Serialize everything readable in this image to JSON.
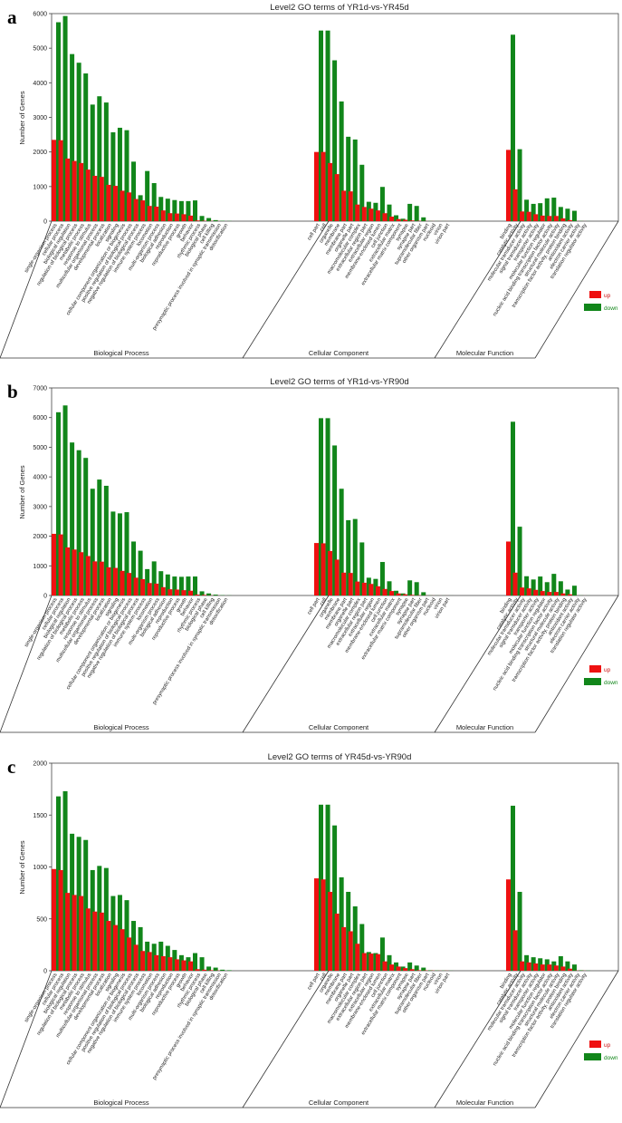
{
  "categories": {
    "bp": [
      "single-organism process",
      "cellular process",
      "biological regulation",
      "regulation of biological process",
      "metabolic process",
      "response to stimulus",
      "multicellular organismal process",
      "developmental process",
      "localization",
      "signaling",
      "cellular component organization or biogenesis",
      "positive regulation of biological process",
      "negative regulation of biological process",
      "immune system process",
      "locomotion",
      "multi-organism process",
      "biological adhesion",
      "reproduction",
      "reproductive process",
      "growth",
      "behavior",
      "rhythmic process",
      "biological phase",
      "cell killing",
      "presynaptic process involved in synaptic transmission",
      "detoxification"
    ],
    "cc": [
      "cell part",
      "cell",
      "organelle",
      "membrane",
      "membrane part",
      "organelle part",
      "macromolecular complex",
      "extracellular region part",
      "extracellular region",
      "membrane-enclosed lumen",
      "cell junction",
      "extracellular matrix",
      "extracellular matrix component",
      "synapse",
      "synapse part",
      "supramolecular fiber",
      "other organism part",
      "nucleoid",
      "virion",
      "virion part"
    ],
    "mf": [
      "binding",
      "catalytic activity",
      "molecular transducer activity",
      "signal transducer activity",
      "transporter activity",
      "molecular function regulator",
      "nucleic acid binding transcription factor activity",
      "structural molecule activity",
      "transcription factor activity, protein binding",
      "antioxidant activity",
      "electron carrier activity",
      "translation regulator activity"
    ]
  },
  "section_labels": {
    "bp": "Biological Process",
    "cc": "Cellular Component",
    "mf": "Molecular Function"
  },
  "panel_letters": [
    "a",
    "b",
    "c"
  ],
  "chart_data": [
    {
      "type": "bar",
      "title": "Level2 GO terms of YR1d-vs-YR45d",
      "ylabel": "Number of Genes",
      "ylim": [
        0,
        6000
      ],
      "yticks": [
        0,
        1000,
        2000,
        3000,
        4000,
        5000,
        6000
      ],
      "legend": {
        "position": "right",
        "entries": [
          "up",
          "down"
        ]
      },
      "series": [
        {
          "name": "up",
          "color": "#ee1111",
          "bp": [
            2350,
            2340,
            1810,
            1740,
            1680,
            1490,
            1310,
            1280,
            1050,
            1020,
            880,
            830,
            640,
            600,
            440,
            420,
            310,
            230,
            220,
            200,
            160,
            20,
            10,
            5,
            2,
            0
          ],
          "cc": [
            2000,
            2000,
            1680,
            1360,
            880,
            860,
            480,
            410,
            360,
            310,
            230,
            130,
            60,
            40,
            20,
            8,
            3,
            2,
            1,
            1
          ],
          "mf": [
            2060,
            920,
            280,
            270,
            200,
            160,
            150,
            150,
            80,
            30,
            2,
            1
          ]
        },
        {
          "name": "down",
          "color": "#11861a",
          "bp": [
            5750,
            5930,
            4830,
            4580,
            4270,
            3370,
            3610,
            3430,
            2570,
            2700,
            2630,
            1720,
            750,
            1450,
            1100,
            700,
            650,
            610,
            580,
            580,
            600,
            150,
            90,
            30,
            10,
            5
          ],
          "cc": [
            5510,
            5510,
            4650,
            3460,
            2440,
            2360,
            1630,
            560,
            530,
            990,
            480,
            170,
            70,
            500,
            440,
            110,
            5,
            3,
            2,
            1
          ],
          "mf": [
            5390,
            2080,
            620,
            500,
            520,
            660,
            680,
            410,
            360,
            300,
            5,
            2
          ]
        }
      ]
    },
    {
      "type": "bar",
      "title": "Level2 GO terms of YR1d-vs-YR90d",
      "ylabel": "Number of Genes",
      "ylim": [
        0,
        7000
      ],
      "yticks": [
        0,
        1000,
        2000,
        3000,
        4000,
        5000,
        6000,
        7000
      ],
      "legend": {
        "position": "right",
        "entries": [
          "up",
          "down"
        ]
      },
      "series": [
        {
          "name": "up",
          "color": "#ee1111",
          "bp": [
            2080,
            2060,
            1620,
            1550,
            1460,
            1330,
            1150,
            1140,
            950,
            930,
            830,
            760,
            600,
            550,
            420,
            400,
            280,
            210,
            200,
            180,
            160,
            30,
            20,
            5,
            2,
            0
          ],
          "cc": [
            1770,
            1760,
            1500,
            1210,
            770,
            760,
            470,
            430,
            390,
            310,
            220,
            150,
            70,
            40,
            20,
            8,
            3,
            2,
            1,
            1
          ],
          "mf": [
            1820,
            770,
            270,
            240,
            190,
            150,
            120,
            120,
            70,
            40,
            2,
            1
          ]
        },
        {
          "name": "down",
          "color": "#11861a",
          "bp": [
            6180,
            6410,
            5160,
            4900,
            4640,
            3600,
            3910,
            3700,
            2830,
            2770,
            2810,
            1820,
            1510,
            890,
            1150,
            820,
            710,
            640,
            630,
            640,
            640,
            140,
            70,
            30,
            10,
            5
          ],
          "cc": [
            5980,
            5980,
            5060,
            3600,
            2540,
            2580,
            1790,
            600,
            560,
            1130,
            480,
            160,
            70,
            510,
            450,
            110,
            5,
            3,
            2,
            1
          ],
          "mf": [
            5860,
            2320,
            650,
            540,
            640,
            450,
            730,
            480,
            200,
            330,
            5,
            2
          ]
        }
      ]
    },
    {
      "type": "bar",
      "title": "Level2 GO terms of YR45d-vs-YR90d",
      "ylabel": "Number of Genes",
      "ylim": [
        0,
        2000
      ],
      "yticks": [
        0,
        500,
        1000,
        1500,
        2000
      ],
      "legend": {
        "position": "right",
        "entries": [
          "up",
          "down"
        ]
      },
      "series": [
        {
          "name": "up",
          "color": "#ee1111",
          "bp": [
            980,
            970,
            750,
            730,
            720,
            600,
            570,
            560,
            480,
            440,
            400,
            320,
            250,
            190,
            180,
            150,
            140,
            130,
            110,
            100,
            90,
            15,
            10,
            5,
            2,
            0
          ],
          "cc": [
            890,
            880,
            760,
            550,
            420,
            380,
            260,
            170,
            165,
            160,
            90,
            60,
            40,
            25,
            15,
            5,
            3,
            2,
            1,
            1
          ],
          "mf": [
            880,
            390,
            90,
            80,
            70,
            60,
            60,
            50,
            40,
            20,
            2,
            1
          ]
        },
        {
          "name": "down",
          "color": "#11861a",
          "bp": [
            1680,
            1730,
            1320,
            1290,
            1260,
            970,
            1010,
            990,
            720,
            730,
            680,
            480,
            420,
            280,
            260,
            280,
            240,
            200,
            150,
            130,
            170,
            130,
            40,
            30,
            10,
            5
          ],
          "cc": [
            1600,
            1600,
            1400,
            900,
            760,
            620,
            450,
            180,
            170,
            320,
            150,
            80,
            40,
            80,
            50,
            30,
            5,
            3,
            2,
            1
          ],
          "mf": [
            1590,
            760,
            150,
            130,
            120,
            110,
            90,
            140,
            90,
            60,
            5,
            2
          ]
        }
      ]
    }
  ]
}
